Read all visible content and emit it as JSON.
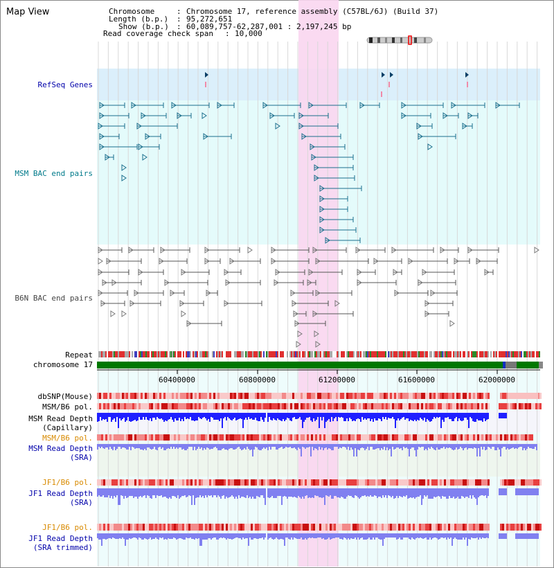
{
  "view_title": "Map View",
  "info": {
    "chromosome_key": "Chromosome",
    "chromosome_val": "Chromosome 17, reference assembly (C57BL/6J) (Build 37)",
    "length_key": "Length (b.p.)",
    "length_val": "95,272,651",
    "show_key": "Show (b.p.)",
    "show_val": "60,089,757-62,287,001 : 2,197,245 bp",
    "coverage_key": "Read coverage check span",
    "coverage_val": "10,000"
  },
  "tracks": {
    "refseq": "RefSeq Genes",
    "msm_bac": "MSM BAC end pairs",
    "b6n_bac": "B6N BAC end pairs",
    "repeat": "Repeat",
    "chromosome": "chromosome 17",
    "dbsnp": "dbSNP(Mouse)",
    "msm_b6_pol_1": "MSM/B6 pol.",
    "msm_read_depth_1a": "MSM Read Depth",
    "msm_read_depth_1b": "(Capillary)",
    "msm_b6_pol_2": "MSM/B6 pol.",
    "msm_read_depth_2a": "MSM Read Depth",
    "msm_read_depth_2b": "(SRA)",
    "jf1_b6_pol_1": "JF1/B6 pol.",
    "jf1_read_depth_1a": "JF1 Read Depth",
    "jf1_read_depth_1b": "(SRA)",
    "jf1_b6_pol_2": "JF1/B6 pol.",
    "jf1_read_depth_2a": "JF1 Read Depth",
    "jf1_read_depth_2b": "(SRA trimmed)"
  },
  "axis_ticks": [
    "60400000",
    "60800000",
    "61200000",
    "61600000",
    "62000000"
  ],
  "colors": {
    "refseq_bg": "#dbeffb",
    "msm_bg": "#e4fbfb",
    "b6n_bg": "#ffffff",
    "highlight": "#f9d6ef",
    "gridline": "#d8d8d8",
    "msm_feature": "#1a6e8c",
    "b6n_feature": "#555555",
    "chromosome_green": "#007700",
    "depth_blue": "#2020ff",
    "depth_lightblue": "#8080f0",
    "pol_red": "#e02020",
    "label_blue": "#0000aa",
    "label_orange": "#d88a00"
  }
}
